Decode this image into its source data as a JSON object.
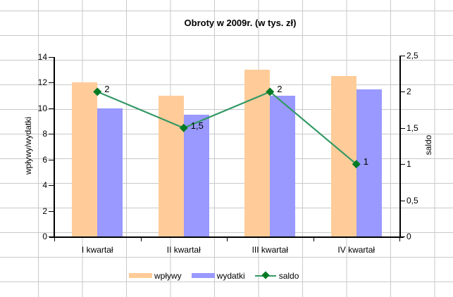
{
  "chart_data": {
    "type": "bar+line",
    "title": "Obroty w 2009r. (w tys. zł)",
    "categories": [
      "I kwartał",
      "II kwartał",
      "III kwartał",
      "IV kwartał"
    ],
    "series": [
      {
        "name": "wpływy",
        "type": "bar",
        "axis": "left",
        "color": "#FFCC99",
        "values": [
          12,
          11,
          13,
          12.5
        ]
      },
      {
        "name": "wydatki",
        "type": "bar",
        "axis": "left",
        "color": "#9999FF",
        "values": [
          10,
          9.5,
          11,
          11.5
        ]
      },
      {
        "name": "saldo",
        "type": "line",
        "axis": "right",
        "color": "#339966",
        "marker": "diamond",
        "marker_color": "#007A25",
        "values": [
          2,
          1.5,
          2,
          1
        ],
        "data_labels": [
          "2",
          "1,5",
          "2",
          "1"
        ]
      }
    ],
    "left_axis": {
      "title": "wpływy/wydatki",
      "min": 0,
      "max": 14,
      "step": 2,
      "tick_labels": [
        "0",
        "2",
        "4",
        "6",
        "8",
        "10",
        "12",
        "14"
      ]
    },
    "right_axis": {
      "title": "saldo",
      "min": 0,
      "max": 2.5,
      "step": 0.5,
      "tick_labels": [
        "0",
        "0,5",
        "1",
        "1,5",
        "2",
        "2,5"
      ]
    },
    "legend": {
      "position": "bottom"
    },
    "plot_area_fill": "none",
    "background": {
      "fill": "#FFFFFF",
      "spreadsheet_gridline_color": "#C9C9C9"
    },
    "text_color": "#000000"
  }
}
